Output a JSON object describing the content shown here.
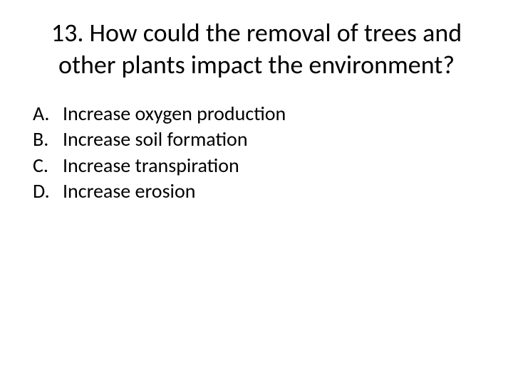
{
  "question": {
    "number": "13.",
    "text": "How could the removal of trees and other plants impact the environment?",
    "full_title": "13. How could the removal of trees and other plants impact the environment?",
    "title_fontsize": 36,
    "title_color": "#000000",
    "title_weight": 400
  },
  "options": [
    {
      "letter": "A.",
      "text": "Increase oxygen production"
    },
    {
      "letter": "B.",
      "text": "Increase soil formation"
    },
    {
      "letter": "C.",
      "text": "Increase transpiration"
    },
    {
      "letter": "D.",
      "text": "Increase erosion"
    }
  ],
  "option_style": {
    "fontsize": 28,
    "color": "#000000",
    "weight": 400
  },
  "background_color": "#ffffff"
}
